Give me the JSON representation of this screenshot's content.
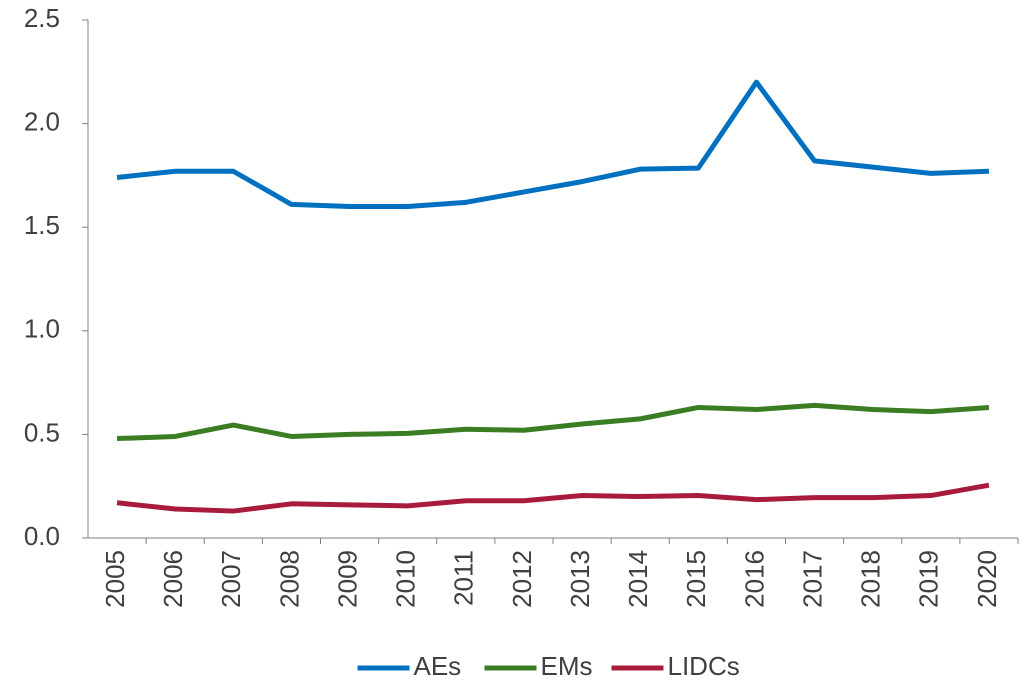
{
  "chart_data": {
    "type": "line",
    "categories": [
      "2005",
      "2006",
      "2007",
      "2008",
      "2009",
      "2010",
      "2011",
      "2012",
      "2013",
      "2014",
      "2015",
      "2016",
      "2017",
      "2018",
      "2019",
      "2020"
    ],
    "series": [
      {
        "name": "AEs",
        "color": "#0070c0",
        "values": [
          1.74,
          1.77,
          1.77,
          1.61,
          1.6,
          1.6,
          1.62,
          1.67,
          1.72,
          1.78,
          1.785,
          2.2,
          1.82,
          1.79,
          1.76,
          1.77
        ]
      },
      {
        "name": "EMs",
        "color": "#3a7d22",
        "values": [
          0.48,
          0.49,
          0.545,
          0.49,
          0.5,
          0.505,
          0.525,
          0.52,
          0.55,
          0.575,
          0.63,
          0.62,
          0.64,
          0.62,
          0.61,
          0.63
        ]
      },
      {
        "name": "LIDCs",
        "color": "#a81b3b",
        "values": [
          0.17,
          0.14,
          0.13,
          0.165,
          0.16,
          0.155,
          0.18,
          0.18,
          0.205,
          0.2,
          0.205,
          0.185,
          0.195,
          0.195,
          0.205,
          0.255
        ]
      }
    ],
    "ylim": [
      0,
      2.5
    ],
    "yticks": [
      {
        "value": 0,
        "label": "0.0"
      },
      0.5,
      {
        "value": 1,
        "label": "1.0"
      },
      1.5,
      {
        "value": 2,
        "label": "2.0"
      },
      2.5
    ],
    "legend": "bottom"
  }
}
